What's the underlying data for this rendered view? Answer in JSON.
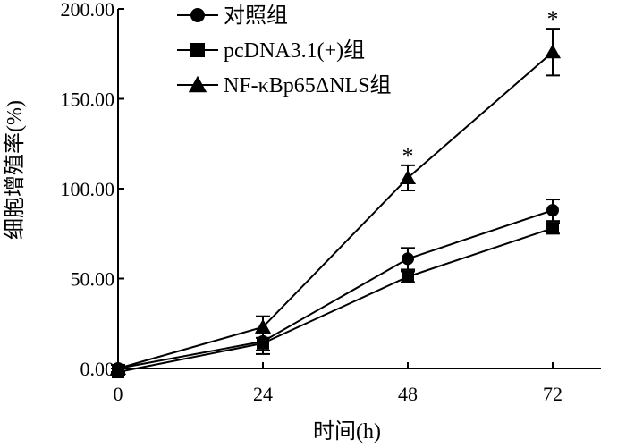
{
  "chart_data": {
    "type": "line",
    "xlabel": "时间(h)",
    "ylabel": "细胞增殖率(%)",
    "x": [
      0,
      24,
      48,
      72
    ],
    "x_tick_labels": [
      "0",
      "24",
      "48",
      "72"
    ],
    "y_tick_labels": [
      "0.00",
      "50.00",
      "100.00",
      "150.00",
      "200.00"
    ],
    "ylim": [
      0,
      200
    ],
    "xlim": [
      0,
      80
    ],
    "grid": false,
    "legend_position": "top-left",
    "series": [
      {
        "name": "对照组",
        "marker": "circle",
        "values": [
          0,
          15,
          61,
          88
        ],
        "errors": [
          2,
          5,
          6,
          6
        ]
      },
      {
        "name": "pcDNA3.1(+)组",
        "marker": "square",
        "values": [
          -2,
          14,
          51,
          78
        ],
        "errors": [
          2,
          6,
          3,
          3
        ]
      },
      {
        "name": "NF-κBp65ΔNLS组",
        "marker": "triangle",
        "values": [
          0,
          23,
          106,
          176
        ],
        "errors": [
          2,
          6,
          7,
          13
        ]
      }
    ],
    "annotations": [
      {
        "x": 48,
        "label": "*"
      },
      {
        "x": 72,
        "label": "*"
      }
    ],
    "color": "#000000"
  }
}
